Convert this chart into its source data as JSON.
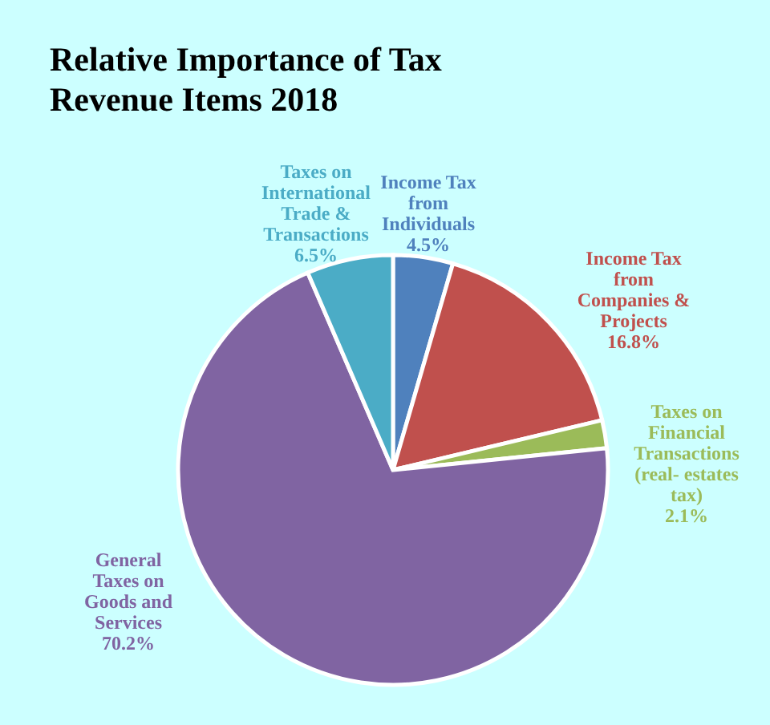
{
  "chart_data": {
    "type": "pie",
    "title": "Relative Importance of Tax\nRevenue Items 2018",
    "categories": [
      "Income Tax\nfrom\nIndividuals",
      "Income Tax\nfrom\nCompanies &\nProjects",
      "Taxes on\nFinancial\nTransactions\n(real- estates\ntax)",
      "General\nTaxes on\nGoods and\nServices",
      "Taxes on\nInternational\nTrade &\nTransactions"
    ],
    "values": [
      4.5,
      16.8,
      2.1,
      70.2,
      6.5
    ],
    "value_labels": [
      "4.5%",
      "16.8%",
      "2.1%",
      "70.2%",
      "6.5%"
    ],
    "colors": [
      "#4f81bd",
      "#c0504d",
      "#9bbb59",
      "#8064a2",
      "#4bacc6"
    ]
  }
}
